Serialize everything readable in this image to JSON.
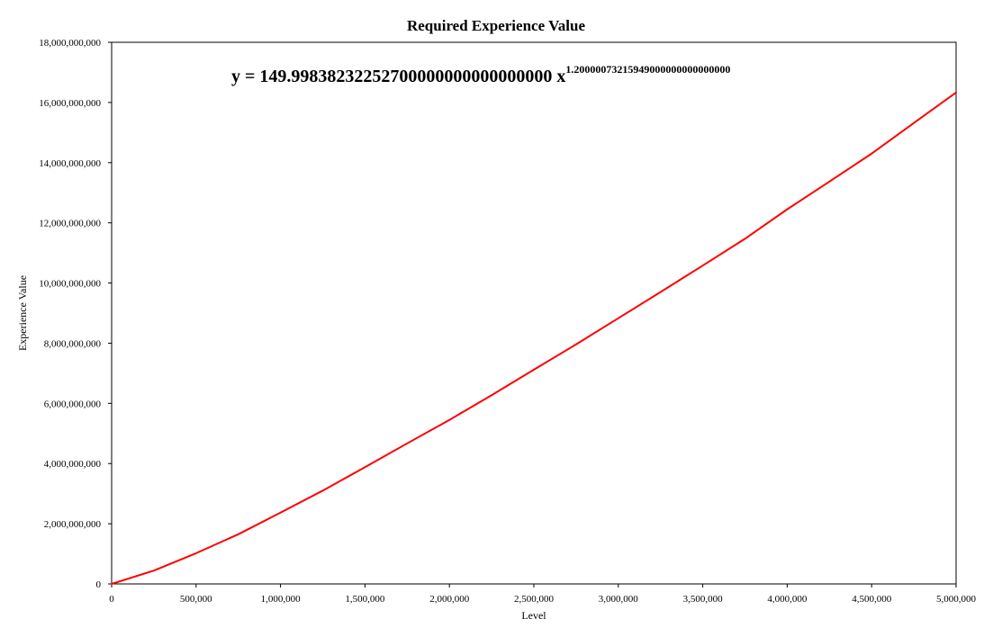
{
  "chart_data": {
    "type": "line",
    "title": "Required Experience Value",
    "xlabel": "Level",
    "ylabel": "Experience Value",
    "xlim": [
      0,
      5000000
    ],
    "ylim": [
      0,
      18000000000
    ],
    "grid": false,
    "x_ticks": [
      {
        "value": 0,
        "label": "0"
      },
      {
        "value": 500000,
        "label": "500,000"
      },
      {
        "value": 1000000,
        "label": "1,000,000"
      },
      {
        "value": 1500000,
        "label": "1,500,000"
      },
      {
        "value": 2000000,
        "label": "2,000,000"
      },
      {
        "value": 2500000,
        "label": "2,500,000"
      },
      {
        "value": 3000000,
        "label": "3,000,000"
      },
      {
        "value": 3500000,
        "label": "3,500,000"
      },
      {
        "value": 4000000,
        "label": "4,000,000"
      },
      {
        "value": 4500000,
        "label": "4,500,000"
      },
      {
        "value": 5000000,
        "label": "5,000,000"
      }
    ],
    "y_ticks": [
      {
        "value": 0,
        "label": "0"
      },
      {
        "value": 2000000000,
        "label": "2,000,000,000"
      },
      {
        "value": 4000000000,
        "label": "4,000,000,000"
      },
      {
        "value": 6000000000,
        "label": "6,000,000,000"
      },
      {
        "value": 8000000000,
        "label": "8,000,000,000"
      },
      {
        "value": 10000000000,
        "label": "10,000,000,000"
      },
      {
        "value": 12000000000,
        "label": "12,000,000,000"
      },
      {
        "value": 14000000000,
        "label": "14,000,000,000"
      },
      {
        "value": 16000000000,
        "label": "16,000,000,000"
      },
      {
        "value": 18000000000,
        "label": "18,000,000,000"
      }
    ],
    "annotation": {
      "base": "y = 149.99838232252700000000000000000 x",
      "exponent": "1.20000073215949000000000000000"
    },
    "series": [
      {
        "color": "#ff0000",
        "x": [
          0,
          250000,
          500000,
          750000,
          1000000,
          1250000,
          1500000,
          1750000,
          2000000,
          2250000,
          2500000,
          2750000,
          3000000,
          3250000,
          3500000,
          3750000,
          4000000,
          4250000,
          4500000,
          4750000,
          5000000
        ],
        "y": [
          0,
          444000000,
          1020000000,
          1650000000,
          2370000000,
          3100000000,
          3880000000,
          4670000000,
          5450000000,
          6270000000,
          7120000000,
          7960000000,
          8830000000,
          9700000000,
          10580000000,
          11470000000,
          12450000000,
          13370000000,
          14300000000,
          15320000000,
          16330000000
        ]
      }
    ]
  }
}
